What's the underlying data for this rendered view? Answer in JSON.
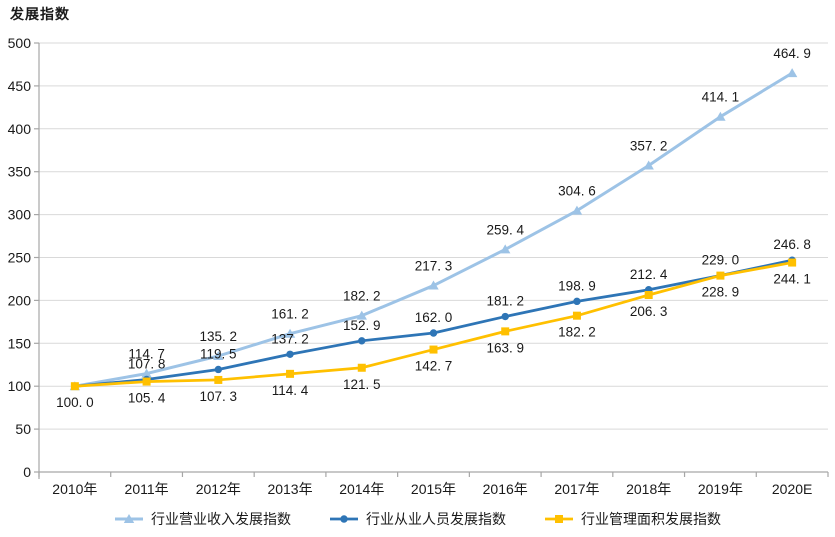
{
  "title": "发展指数",
  "colors": {
    "revenue": "#9DC3E6",
    "employees": "#2E75B6",
    "area": "#FFC000",
    "gridline": "#D9D9D9",
    "axis": "#A6A6A6",
    "text": "#1A1A1A"
  },
  "chart_data": {
    "type": "line",
    "title": "发展指数",
    "xlabel": "",
    "ylabel": "发展指数",
    "ylim": [
      0,
      500
    ],
    "yticks": [
      0,
      50,
      100,
      150,
      200,
      250,
      300,
      350,
      400,
      450,
      500
    ],
    "grid": "horizontal",
    "legend_position": "bottom",
    "categories": [
      "2010年",
      "2011年",
      "2012年",
      "2013年",
      "2014年",
      "2015年",
      "2016年",
      "2017年",
      "2018年",
      "2019年",
      "2020E"
    ],
    "series": [
      {
        "name": "行业营业收入发展指数",
        "color": "#9DC3E6",
        "marker": "triangle",
        "line_width": 3,
        "label_position": "above",
        "show_first_label": false,
        "values": [
          100.0,
          114.7,
          135.2,
          161.2,
          182.2,
          217.3,
          259.4,
          304.6,
          357.2,
          414.1,
          464.9
        ],
        "labels": [
          "100. 0",
          "114. 7",
          "135. 2",
          "161. 2",
          "182. 2",
          "217. 3",
          "259. 4",
          "304. 6",
          "357. 2",
          "414. 1",
          "464. 9"
        ]
      },
      {
        "name": "行业从业人员发展指数",
        "color": "#2E75B6",
        "marker": "circle",
        "line_width": 2.75,
        "label_position": "above",
        "show_first_label": false,
        "values": [
          100.0,
          107.8,
          119.5,
          137.2,
          152.9,
          162.0,
          181.2,
          198.9,
          212.4,
          229.0,
          246.8
        ],
        "labels": [
          "100. 0",
          "107. 8",
          "119. 5",
          "137. 2",
          "152. 9",
          "162. 0",
          "181. 2",
          "198. 9",
          "212. 4",
          "229. 0",
          "246. 8"
        ]
      },
      {
        "name": "行业管理面积发展指数",
        "color": "#FFC000",
        "marker": "square",
        "line_width": 2.75,
        "label_position": "below",
        "show_first_label": true,
        "values": [
          100.0,
          105.4,
          107.3,
          114.4,
          121.5,
          142.7,
          163.9,
          182.2,
          206.3,
          228.9,
          244.1
        ],
        "labels": [
          "100. 0",
          "105. 4",
          "107. 3",
          "114. 4",
          "121. 5",
          "142. 7",
          "163. 9",
          "182. 2",
          "206. 3",
          "228. 9",
          "244. 1"
        ]
      }
    ]
  }
}
